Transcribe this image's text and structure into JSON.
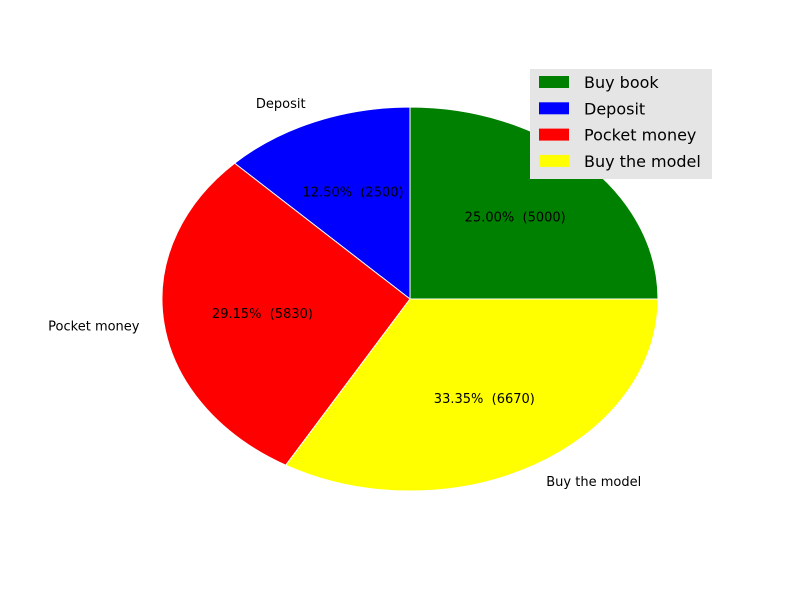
{
  "chart_data": {
    "type": "pie",
    "title": "",
    "slices": [
      {
        "label": "Buy book",
        "value": 5000,
        "percent_text": "25.00%  (5000)",
        "color": "#008000"
      },
      {
        "label": "Deposit",
        "value": 2500,
        "percent_text": "12.50%  (2500)",
        "color": "#0000ff"
      },
      {
        "label": "Pocket money",
        "value": 5830,
        "percent_text": "29.15%  (5830)",
        "color": "#ff0000"
      },
      {
        "label": "Buy the model",
        "value": 6670,
        "percent_text": "33.35%  (6670)",
        "color": "#ffff00"
      }
    ],
    "outer_labels": [
      "Deposit",
      "Pocket money",
      "Buy the model"
    ],
    "start_angle_deg": 0,
    "direction": "counterclockwise",
    "legend": {
      "placement": "upper-right",
      "entries": [
        "Buy book",
        "Deposit",
        "Pocket money",
        "Buy the model"
      ]
    }
  }
}
